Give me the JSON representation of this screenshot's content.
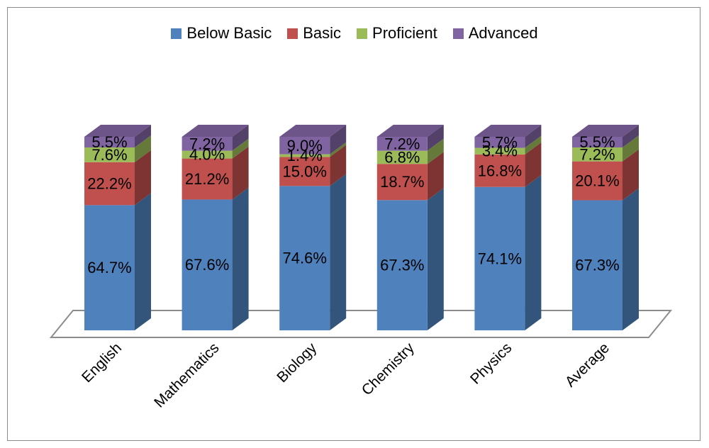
{
  "chart_data": {
    "type": "bar",
    "stacked": true,
    "percent_stacked": true,
    "three_d": true,
    "categories": [
      "English",
      "Mathematics",
      "Biology",
      "Chemistry",
      "Physics",
      "Average"
    ],
    "series": [
      {
        "name": "Below Basic",
        "color": "#4f81bd",
        "values": [
          64.7,
          67.6,
          74.6,
          67.3,
          74.1,
          67.3
        ],
        "labels": [
          "64.7%",
          "67.6%",
          "74.6%",
          "67.3%",
          "74.1%",
          "67.3%"
        ]
      },
      {
        "name": "Basic",
        "color": "#c0504d",
        "values": [
          22.2,
          21.2,
          15.0,
          18.7,
          16.8,
          20.1
        ],
        "labels": [
          "22.2%",
          "21.2%",
          "15.0%",
          "18.7%",
          "16.8%",
          "20.1%"
        ]
      },
      {
        "name": "Proficient",
        "color": "#9bbb59",
        "values": [
          7.6,
          4.0,
          1.4,
          6.8,
          3.4,
          7.2
        ],
        "labels": [
          "7.6%",
          "4.0%",
          "1.4%",
          "6.8%",
          "3.4%",
          "7.2%"
        ]
      },
      {
        "name": "Advanced",
        "color": "#8064a2",
        "values": [
          5.5,
          7.2,
          9.0,
          7.2,
          5.7,
          5.5
        ],
        "labels": [
          "5.5%",
          "7.2%",
          "9.0%",
          "7.2%",
          "5.7%",
          "5.5%"
        ]
      }
    ],
    "legend_position": "top",
    "title": "",
    "xlabel": "",
    "ylabel": "",
    "grid": false
  }
}
